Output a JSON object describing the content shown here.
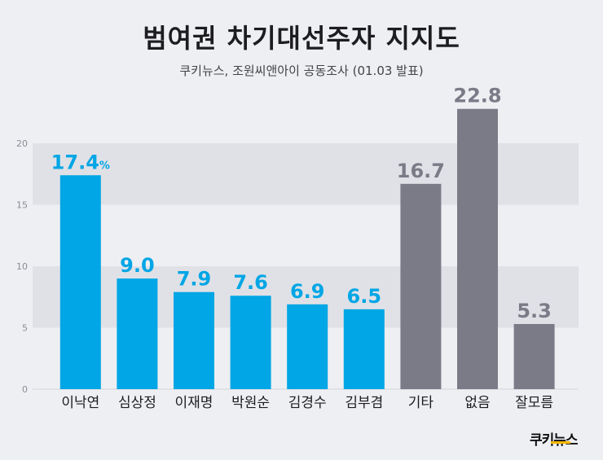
{
  "title": "범여권 차기대선주자 지지도",
  "subtitle": "쿠키뉴스, 조원씨앤아이 공동조사 (01.03 발표)",
  "logo": "쿠키뉴스",
  "colors": {
    "highlight": "#00a6e5",
    "other": "#7b7b88",
    "band": "#e0e1e6",
    "background": "#eeeff3"
  },
  "chart_data": {
    "type": "bar",
    "categories": [
      "이낙연",
      "심상정",
      "이재명",
      "박원순",
      "김경수",
      "김부겸",
      "기타",
      "없음",
      "잘모름"
    ],
    "values": [
      17.4,
      9.0,
      7.9,
      7.6,
      6.9,
      6.5,
      16.7,
      22.8,
      5.3
    ],
    "value_labels": [
      "17.4",
      "9.0",
      "7.9",
      "7.6",
      "6.9",
      "6.5",
      "16.7",
      "22.8",
      "5.3"
    ],
    "first_label_unit": "%",
    "bar_colors": [
      "#00a6e5",
      "#00a6e5",
      "#00a6e5",
      "#00a6e5",
      "#00a6e5",
      "#00a6e5",
      "#7b7b88",
      "#7b7b88",
      "#7b7b88"
    ],
    "ylim": [
      0,
      23
    ],
    "yticks": [
      0,
      5,
      10,
      15,
      20
    ],
    "ytick_labels": [
      "0",
      "5",
      "10",
      "15",
      "20"
    ],
    "xlabel": "",
    "ylabel": ""
  }
}
